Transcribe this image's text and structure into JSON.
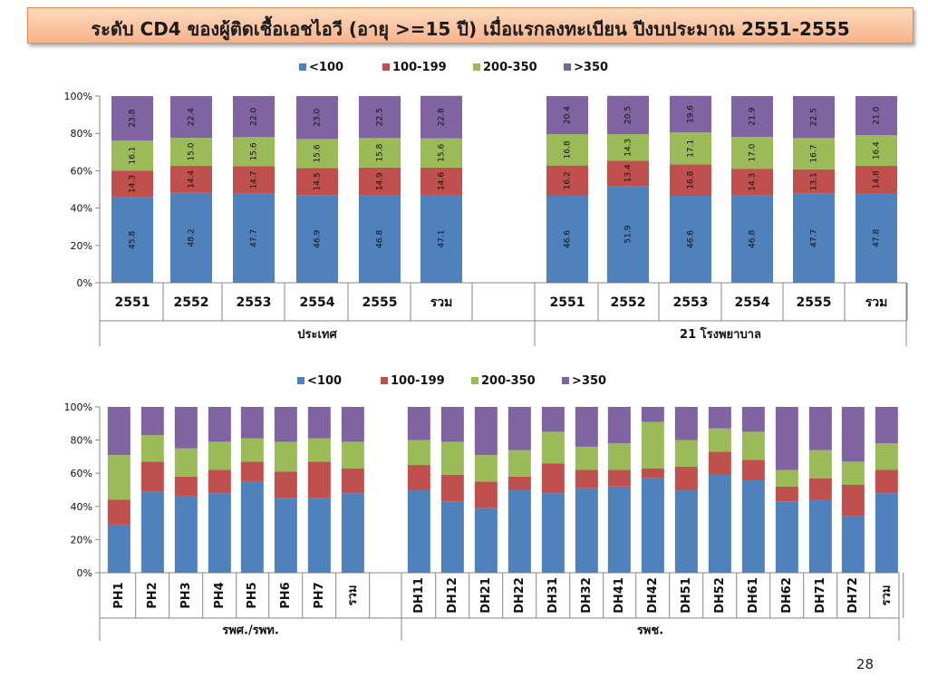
{
  "page_title": "ระดับ CD4 ของผู้ติดเชื้อเอชไอวี (อายุ >=15 ปี) เมื่อแรกลงทะเบียน ปีงบประมาณ 2551-2555",
  "page_number": "28",
  "colors": {
    "lt100": "#4f81bd",
    "r100_199": "#c0504d",
    "r200_350": "#9bbb59",
    "gt350": "#8064a2"
  },
  "chart_data": [
    {
      "type": "bar",
      "stacked": "percent",
      "legend": [
        "<100",
        "100-199",
        "200-350",
        ">350"
      ],
      "legend_position": "top",
      "yticks": [
        "100%",
        "80%",
        "60%",
        "40%",
        "20%",
        "0%"
      ],
      "ylim": [
        0,
        100
      ],
      "groups": [
        {
          "name": "ประเทศ",
          "categories": [
            "2551",
            "2552",
            "2553",
            "2554",
            "2555",
            "รวม"
          ]
        },
        {
          "name": "21 โรงพยาบาล",
          "categories": [
            "2551",
            "2552",
            "2553",
            "2554",
            "2555",
            "รวม"
          ]
        }
      ],
      "series": [
        {
          "name": "<100",
          "values": [
            [
              45.8,
              48.2,
              47.7,
              46.9,
              46.8,
              47.1
            ],
            [
              46.6,
              51.9,
              46.6,
              46.8,
              47.7,
              47.8
            ]
          ]
        },
        {
          "name": "100-199",
          "values": [
            [
              14.3,
              14.4,
              14.7,
              14.5,
              14.9,
              14.6
            ],
            [
              16.2,
              13.4,
              16.8,
              14.3,
              13.1,
              14.8
            ]
          ]
        },
        {
          "name": "200-350",
          "values": [
            [
              16.1,
              15.0,
              15.6,
              15.6,
              15.8,
              15.6
            ],
            [
              16.8,
              14.3,
              17.1,
              17.0,
              16.7,
              16.4
            ]
          ]
        },
        {
          "name": ">350",
          "values": [
            [
              23.8,
              22.4,
              22.0,
              23.0,
              22.5,
              22.8
            ],
            [
              20.4,
              20.5,
              19.6,
              21.9,
              22.5,
              21.0
            ]
          ]
        }
      ],
      "data_labels": true
    },
    {
      "type": "bar",
      "stacked": "percent",
      "legend": [
        "<100",
        "100-199",
        "200-350",
        ">350"
      ],
      "legend_position": "top",
      "yticks": [
        "100%",
        "80%",
        "60%",
        "40%",
        "20%",
        "0%"
      ],
      "ylim": [
        0,
        100
      ],
      "groups": [
        {
          "name": "รพศ./รพท.",
          "categories": [
            "PH1",
            "PH2",
            "PH3",
            "PH4",
            "PH5",
            "PH6",
            "PH7",
            "รวม"
          ]
        },
        {
          "name": "รพช.",
          "categories": [
            "DH11",
            "DH12",
            "DH21",
            "DH22",
            "DH31",
            "DH32",
            "DH41",
            "DH42",
            "DH51",
            "DH52",
            "DH61",
            "DH62",
            "DH71",
            "DH72",
            "รวม"
          ]
        }
      ],
      "series": [
        {
          "name": "<100",
          "values": [
            [
              29,
              49,
              46,
              48,
              55,
              45,
              45,
              48
            ],
            [
              50,
              43,
              39,
              50,
              48,
              51,
              52,
              57,
              50,
              59,
              56,
              43,
              44,
              34,
              48
            ]
          ]
        },
        {
          "name": "100-199",
          "values": [
            [
              15,
              18,
              12,
              14,
              12,
              16,
              22,
              15
            ],
            [
              15,
              16,
              16,
              8,
              18,
              11,
              10,
              6,
              14,
              14,
              12,
              9,
              13,
              19,
              14
            ]
          ]
        },
        {
          "name": "200-350",
          "values": [
            [
              27,
              16,
              17,
              17,
              14,
              18,
              14,
              16
            ],
            [
              15,
              20,
              16,
              16,
              19,
              14,
              16,
              28,
              16,
              14,
              17,
              10,
              17,
              14,
              16
            ]
          ]
        },
        {
          "name": ">350",
          "values": [
            [
              29,
              17,
              25,
              21,
              19,
              21,
              19,
              21
            ],
            [
              20,
              21,
              29,
              26,
              15,
              24,
              22,
              9,
              20,
              13,
              15,
              38,
              26,
              33,
              22
            ]
          ]
        }
      ],
      "data_labels": false
    }
  ]
}
